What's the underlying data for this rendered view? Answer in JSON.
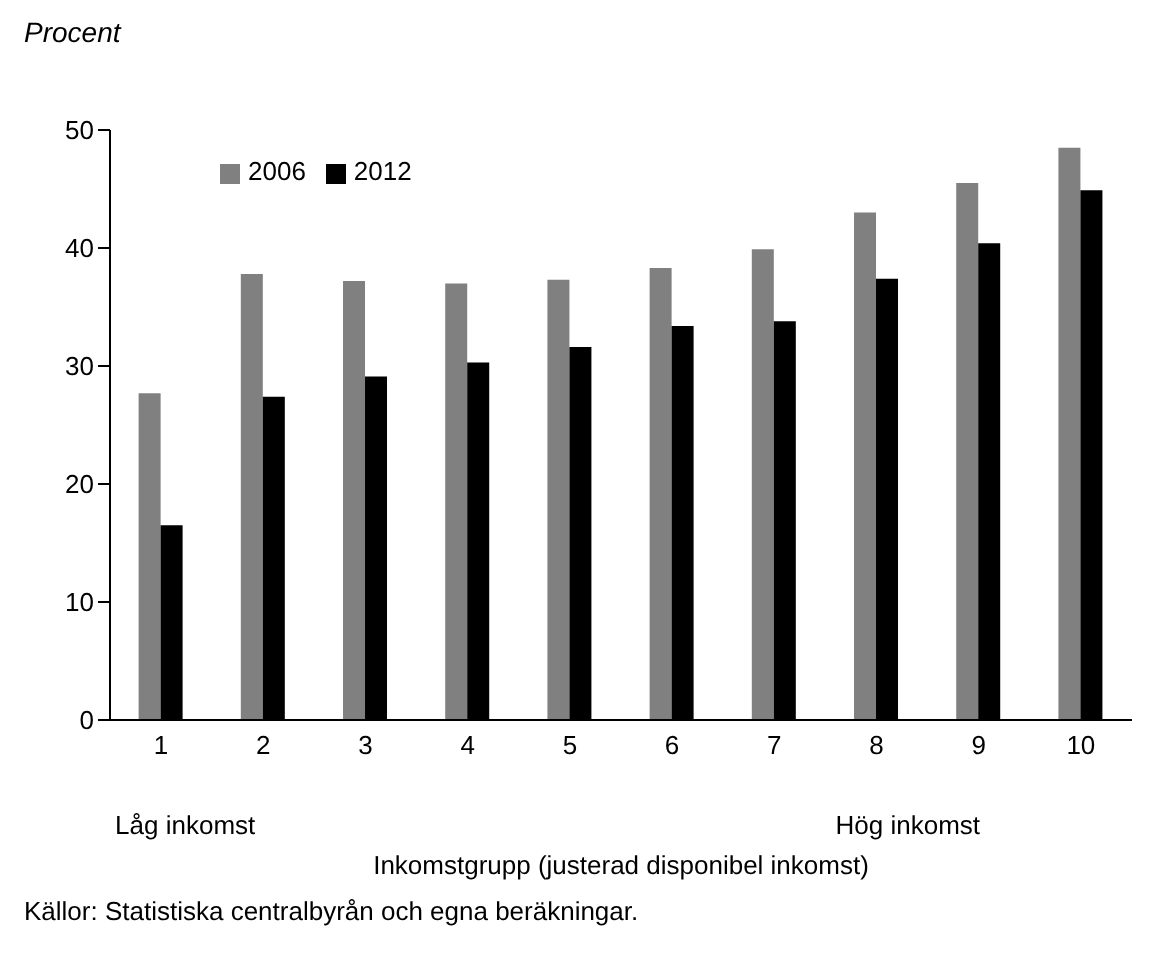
{
  "chart_data": {
    "type": "bar",
    "ylabel": "Procent",
    "xlabel": "Inkomstgrupp (justerad disponibel inkomst)",
    "categories": [
      "1",
      "2",
      "3",
      "4",
      "5",
      "6",
      "7",
      "8",
      "9",
      "10"
    ],
    "series": [
      {
        "name": "2006",
        "color": "#808080",
        "values": [
          27.7,
          37.8,
          37.2,
          37.0,
          37.3,
          38.3,
          39.9,
          43.0,
          45.5,
          48.5
        ]
      },
      {
        "name": "2012",
        "color": "#000000",
        "values": [
          16.5,
          27.4,
          29.1,
          30.3,
          31.6,
          33.4,
          33.8,
          37.4,
          40.4,
          44.9
        ]
      }
    ],
    "ylim": [
      0,
      50
    ],
    "yticks": [
      0,
      10,
      20,
      30,
      40,
      50
    ],
    "grid": false,
    "legend": "top left",
    "annotations": [
      "Låg inkomst",
      "Hög inkomst",
      "Källor: Statistiska centralbyrån och egna beräkningar."
    ]
  }
}
